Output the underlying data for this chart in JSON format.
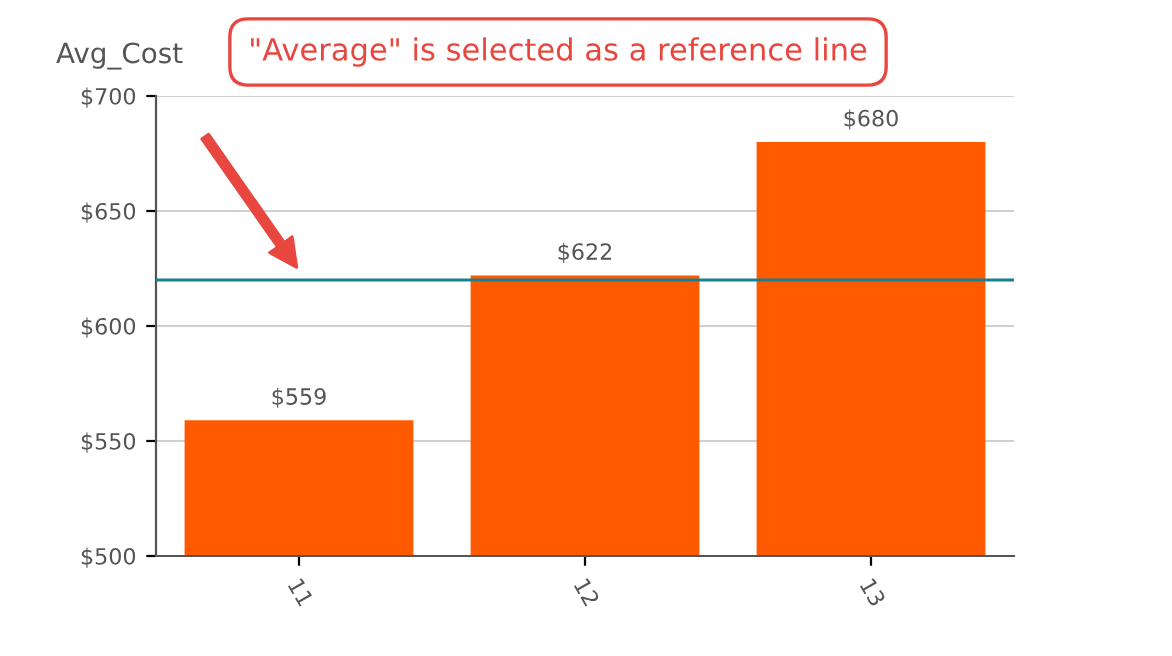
{
  "chart_data": {
    "type": "bar",
    "ylabel": "Avg_Cost",
    "categories": [
      "11",
      "12",
      "13"
    ],
    "series": [
      {
        "color": "#ff5a00",
        "values": [
          559,
          622,
          680
        ],
        "value_labels": [
          "$559",
          "$622",
          "$680"
        ]
      }
    ],
    "ylim": [
      500,
      700
    ],
    "yticks": [
      {
        "value": 500,
        "label": "$500"
      },
      {
        "value": 550,
        "label": "$550"
      },
      {
        "value": 600,
        "label": "$600"
      },
      {
        "value": 650,
        "label": "$650"
      },
      {
        "value": 700,
        "label": "$700"
      }
    ],
    "grid": "y",
    "legend": false,
    "ref_lines": [
      {
        "axis": "y",
        "value": 620,
        "color": "#1a7f8e",
        "line_style": "solid"
      }
    ],
    "annotations": [
      "\"Average\" is selected as a reference line"
    ]
  }
}
